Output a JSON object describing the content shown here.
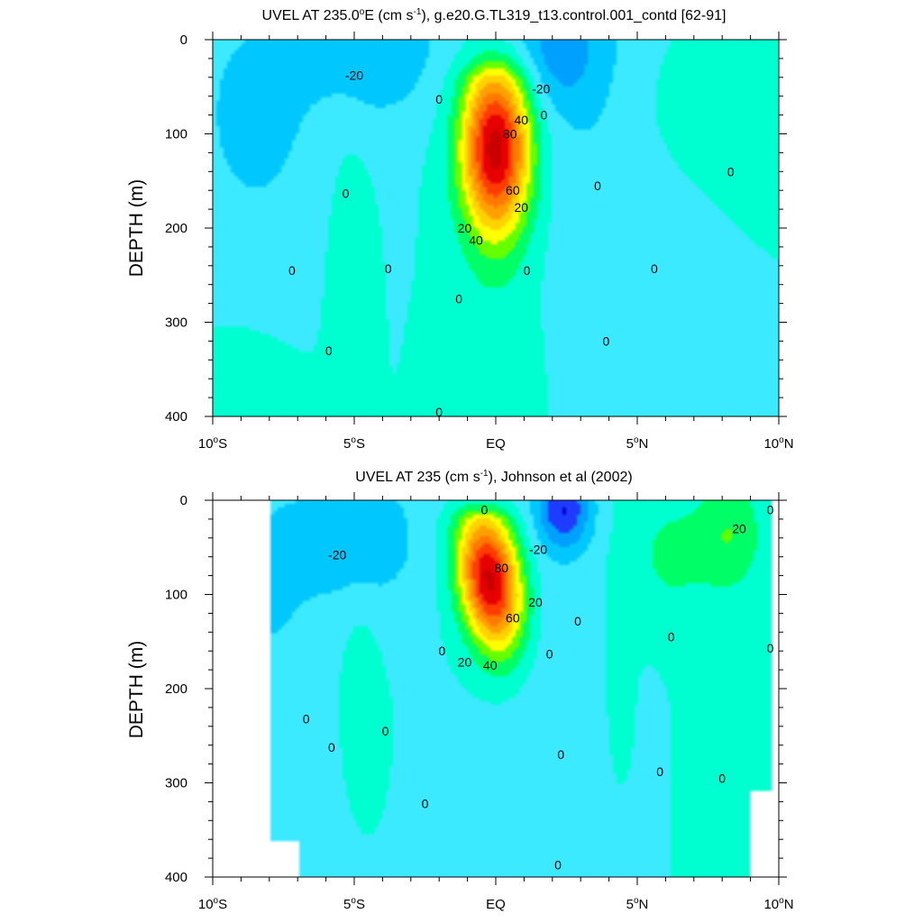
{
  "chart_data": [
    {
      "type": "contour",
      "title_prefix": "UVEL AT 235.0",
      "title_sup1": "o",
      "title_mid": "E (cm s",
      "title_sup2": "-1",
      "title_suffix": "), g.e20.G.TL319_t13.control.001_contd [62-91]",
      "ylabel": "DEPTH (m)",
      "xlim": [
        -10,
        10
      ],
      "ylim": [
        0,
        400
      ],
      "y_inverted": true,
      "xtick_labels": [
        {
          "value": -10,
          "main": "10",
          "sup": "o",
          "hemi": "S"
        },
        {
          "value": -5,
          "main": "5",
          "sup": "o",
          "hemi": "S"
        },
        {
          "value": 0,
          "main": "EQ",
          "sup": "",
          "hemi": ""
        },
        {
          "value": 5,
          "main": "5",
          "sup": "o",
          "hemi": "N"
        },
        {
          "value": 10,
          "main": "10",
          "sup": "o",
          "hemi": "N"
        }
      ],
      "ytick_labels": [
        {
          "value": 0,
          "label": "0"
        },
        {
          "value": 100,
          "label": "100"
        },
        {
          "value": 200,
          "label": "200"
        },
        {
          "value": 300,
          "label": "300"
        },
        {
          "value": 400,
          "label": "400"
        }
      ],
      "contour_interval": 10,
      "core": {
        "lat": 0.0,
        "depth": 115,
        "max": 95
      },
      "contour_labels": [
        {
          "text": "-20",
          "lat": -5.0,
          "depth": 38
        },
        {
          "text": "-20",
          "lat": 1.6,
          "depth": 52
        },
        {
          "text": "0",
          "lat": -2.0,
          "depth": 63
        },
        {
          "text": "0",
          "lat": 1.7,
          "depth": 80
        },
        {
          "text": "40",
          "lat": 0.9,
          "depth": 85
        },
        {
          "text": "80",
          "lat": 0.5,
          "depth": 100
        },
        {
          "text": "0",
          "lat": 8.3,
          "depth": 140
        },
        {
          "text": "0",
          "lat": 3.6,
          "depth": 155
        },
        {
          "text": "0",
          "lat": -5.3,
          "depth": 163
        },
        {
          "text": "60",
          "lat": 0.6,
          "depth": 160
        },
        {
          "text": "20",
          "lat": 0.9,
          "depth": 178
        },
        {
          "text": "20",
          "lat": -1.1,
          "depth": 200
        },
        {
          "text": "40",
          "lat": -0.7,
          "depth": 213
        },
        {
          "text": "0",
          "lat": -7.2,
          "depth": 245
        },
        {
          "text": "0",
          "lat": -3.8,
          "depth": 243
        },
        {
          "text": "0",
          "lat": -1.3,
          "depth": 275
        },
        {
          "text": "0",
          "lat": 1.1,
          "depth": 245
        },
        {
          "text": "0",
          "lat": 5.6,
          "depth": 243
        },
        {
          "text": "0",
          "lat": -5.9,
          "depth": 330
        },
        {
          "text": "0",
          "lat": 3.9,
          "depth": 320
        },
        {
          "text": "0",
          "lat": -2.0,
          "depth": 395
        }
      ]
    },
    {
      "type": "contour",
      "title_prefix": "UVEL AT 235 (cm s",
      "title_sup1": "-1",
      "title_mid": "), Johnson et al (2002)",
      "title_sup2": "",
      "title_suffix": "",
      "ylabel": "DEPTH (m)",
      "xlim": [
        -10,
        10
      ],
      "ylim": [
        0,
        400
      ],
      "y_inverted": true,
      "xtick_labels": [
        {
          "value": -10,
          "main": "10",
          "sup": "o",
          "hemi": "S"
        },
        {
          "value": -5,
          "main": "5",
          "sup": "o",
          "hemi": "S"
        },
        {
          "value": 0,
          "main": "EQ",
          "sup": "",
          "hemi": ""
        },
        {
          "value": 5,
          "main": "5",
          "sup": "o",
          "hemi": "N"
        },
        {
          "value": 10,
          "main": "10",
          "sup": "o",
          "hemi": "N"
        }
      ],
      "ytick_labels": [
        {
          "value": 0,
          "label": "0"
        },
        {
          "value": 100,
          "label": "100"
        },
        {
          "value": 200,
          "label": "200"
        },
        {
          "value": 300,
          "label": "300"
        },
        {
          "value": 400,
          "label": "400"
        }
      ],
      "contour_interval": 10,
      "core": {
        "lat": -0.2,
        "depth": 85,
        "max": 95
      },
      "data_extent": {
        "lat_min": -8.0,
        "lat_max": 9.8
      },
      "contour_labels": [
        {
          "text": "0",
          "lat": -0.4,
          "depth": 10
        },
        {
          "text": "20",
          "lat": 8.6,
          "depth": 30
        },
        {
          "text": "0",
          "lat": 9.7,
          "depth": 10
        },
        {
          "text": "-20",
          "lat": -5.6,
          "depth": 58
        },
        {
          "text": "-20",
          "lat": 1.5,
          "depth": 52
        },
        {
          "text": "80",
          "lat": 0.2,
          "depth": 72
        },
        {
          "text": "20",
          "lat": 1.4,
          "depth": 108
        },
        {
          "text": "60",
          "lat": 0.6,
          "depth": 125
        },
        {
          "text": "0",
          "lat": 2.9,
          "depth": 128
        },
        {
          "text": "0",
          "lat": 6.2,
          "depth": 145
        },
        {
          "text": "0",
          "lat": 9.7,
          "depth": 157
        },
        {
          "text": "0",
          "lat": -1.9,
          "depth": 160
        },
        {
          "text": "0",
          "lat": 1.9,
          "depth": 163
        },
        {
          "text": "20",
          "lat": -1.1,
          "depth": 172
        },
        {
          "text": "40",
          "lat": -0.2,
          "depth": 175
        },
        {
          "text": "0",
          "lat": -6.7,
          "depth": 232
        },
        {
          "text": "0",
          "lat": -3.9,
          "depth": 245
        },
        {
          "text": "0",
          "lat": -5.8,
          "depth": 262
        },
        {
          "text": "0",
          "lat": 2.3,
          "depth": 270
        },
        {
          "text": "0",
          "lat": 5.8,
          "depth": 288
        },
        {
          "text": "0",
          "lat": 8.0,
          "depth": 295
        },
        {
          "text": "0",
          "lat": -2.5,
          "depth": 322
        },
        {
          "text": "0",
          "lat": 2.2,
          "depth": 387
        }
      ]
    }
  ],
  "colors": {
    "levels": [
      -40,
      -30,
      -20,
      -10,
      0,
      10,
      20,
      30,
      40,
      50,
      60,
      70,
      80,
      90
    ],
    "fills": [
      "#0000c8",
      "#1e3cff",
      "#00a0ff",
      "#00c8ff",
      "#3ceaff",
      "#00ffd0",
      "#00ff66",
      "#66ff00",
      "#ffff00",
      "#ffd200",
      "#ffa000",
      "#ff7800",
      "#ff3c00",
      "#e60000",
      "#c80000"
    ]
  }
}
